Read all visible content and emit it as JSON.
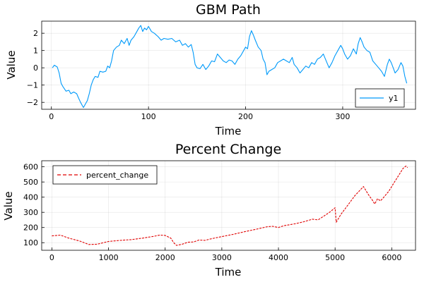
{
  "chart_data": [
    {
      "type": "line",
      "title": "GBM Path",
      "xlabel": "Time",
      "ylabel": "Value",
      "xlim": [
        -10,
        375
      ],
      "ylim": [
        -2.4,
        2.7
      ],
      "xticks": [
        0,
        100,
        200,
        300
      ],
      "yticks": [
        -2,
        -1,
        0,
        1,
        2
      ],
      "grid": true,
      "legend_position": "bottom-right",
      "series": [
        {
          "name": "y1",
          "color": "#009AFA",
          "points": [
            [
              1,
              0.0
            ],
            [
              3,
              0.15
            ],
            [
              6,
              0.05
            ],
            [
              8,
              -0.3
            ],
            [
              10,
              -0.9
            ],
            [
              12,
              -1.1
            ],
            [
              15,
              -1.35
            ],
            [
              18,
              -1.3
            ],
            [
              20,
              -1.5
            ],
            [
              23,
              -1.4
            ],
            [
              26,
              -1.5
            ],
            [
              28,
              -1.75
            ],
            [
              30,
              -2.0
            ],
            [
              32,
              -2.2
            ],
            [
              33,
              -2.3
            ],
            [
              35,
              -2.1
            ],
            [
              37,
              -1.9
            ],
            [
              39,
              -1.5
            ],
            [
              41,
              -1.0
            ],
            [
              43,
              -0.7
            ],
            [
              45,
              -0.5
            ],
            [
              48,
              -0.55
            ],
            [
              50,
              -0.2
            ],
            [
              53,
              -0.25
            ],
            [
              56,
              -0.2
            ],
            [
              58,
              0.1
            ],
            [
              60,
              0.0
            ],
            [
              62,
              0.4
            ],
            [
              64,
              1.0
            ],
            [
              67,
              1.2
            ],
            [
              70,
              1.3
            ],
            [
              72,
              1.6
            ],
            [
              75,
              1.4
            ],
            [
              78,
              1.7
            ],
            [
              80,
              1.3
            ],
            [
              82,
              1.6
            ],
            [
              85,
              1.8
            ],
            [
              88,
              2.1
            ],
            [
              90,
              2.3
            ],
            [
              92,
              2.45
            ],
            [
              94,
              2.1
            ],
            [
              96,
              2.3
            ],
            [
              98,
              2.2
            ],
            [
              100,
              2.4
            ],
            [
              103,
              2.1
            ],
            [
              106,
              2.0
            ],
            [
              110,
              1.8
            ],
            [
              113,
              1.6
            ],
            [
              116,
              1.7
            ],
            [
              120,
              1.65
            ],
            [
              124,
              1.7
            ],
            [
              128,
              1.5
            ],
            [
              132,
              1.6
            ],
            [
              135,
              1.3
            ],
            [
              138,
              1.4
            ],
            [
              141,
              1.2
            ],
            [
              144,
              1.35
            ],
            [
              146,
              0.9
            ],
            [
              148,
              0.2
            ],
            [
              150,
              0.0
            ],
            [
              153,
              -0.05
            ],
            [
              156,
              0.2
            ],
            [
              159,
              -0.1
            ],
            [
              162,
              0.1
            ],
            [
              165,
              0.4
            ],
            [
              168,
              0.35
            ],
            [
              171,
              0.8
            ],
            [
              174,
              0.6
            ],
            [
              177,
              0.4
            ],
            [
              180,
              0.3
            ],
            [
              183,
              0.45
            ],
            [
              186,
              0.4
            ],
            [
              189,
              0.2
            ],
            [
              192,
              0.5
            ],
            [
              195,
              0.7
            ],
            [
              198,
              1.0
            ],
            [
              200,
              1.2
            ],
            [
              202,
              1.1
            ],
            [
              204,
              1.8
            ],
            [
              206,
              2.15
            ],
            [
              208,
              1.9
            ],
            [
              210,
              1.6
            ],
            [
              213,
              1.2
            ],
            [
              216,
              1.0
            ],
            [
              218,
              0.5
            ],
            [
              220,
              0.3
            ],
            [
              222,
              -0.4
            ],
            [
              224,
              -0.2
            ],
            [
              227,
              -0.1
            ],
            [
              230,
              0.0
            ],
            [
              233,
              0.3
            ],
            [
              236,
              0.4
            ],
            [
              239,
              0.5
            ],
            [
              242,
              0.4
            ],
            [
              245,
              0.3
            ],
            [
              248,
              0.6
            ],
            [
              250,
              0.2
            ],
            [
              253,
              0.0
            ],
            [
              256,
              -0.3
            ],
            [
              259,
              -0.1
            ],
            [
              262,
              0.1
            ],
            [
              265,
              0.0
            ],
            [
              268,
              0.3
            ],
            [
              271,
              0.2
            ],
            [
              274,
              0.5
            ],
            [
              277,
              0.6
            ],
            [
              280,
              0.8
            ],
            [
              283,
              0.4
            ],
            [
              286,
              0.0
            ],
            [
              289,
              0.3
            ],
            [
              292,
              0.7
            ],
            [
              295,
              1.0
            ],
            [
              298,
              1.3
            ],
            [
              300,
              1.1
            ],
            [
              302,
              0.8
            ],
            [
              305,
              0.5
            ],
            [
              308,
              0.7
            ],
            [
              311,
              1.1
            ],
            [
              314,
              0.8
            ],
            [
              316,
              1.4
            ],
            [
              318,
              1.75
            ],
            [
              320,
              1.5
            ],
            [
              322,
              1.2
            ],
            [
              325,
              1.0
            ],
            [
              328,
              0.9
            ],
            [
              331,
              0.4
            ],
            [
              334,
              0.2
            ],
            [
              337,
              0.0
            ],
            [
              340,
              -0.2
            ],
            [
              343,
              -0.5
            ],
            [
              346,
              0.2
            ],
            [
              348,
              0.5
            ],
            [
              350,
              0.3
            ],
            [
              352,
              0.0
            ],
            [
              354,
              -0.3
            ],
            [
              357,
              -0.1
            ],
            [
              360,
              0.3
            ],
            [
              362,
              0.1
            ],
            [
              364,
              -0.5
            ],
            [
              366,
              -0.9
            ]
          ]
        }
      ]
    },
    {
      "type": "line",
      "title": "Percent Change",
      "xlabel": "Time",
      "ylabel": "Value",
      "xlim": [
        -180,
        6420
      ],
      "ylim": [
        50,
        640
      ],
      "xticks": [
        0,
        1000,
        2000,
        3000,
        4000,
        5000,
        6000
      ],
      "yticks": [
        100,
        200,
        300,
        400,
        500,
        600
      ],
      "grid": true,
      "legend_position": "top-left",
      "series": [
        {
          "name": "percent_change",
          "color": "#E00000",
          "dashed": true,
          "points": [
            [
              0,
              145
            ],
            [
              150,
              150
            ],
            [
              300,
              130
            ],
            [
              500,
              110
            ],
            [
              650,
              88
            ],
            [
              800,
              90
            ],
            [
              1000,
              108
            ],
            [
              1200,
              115
            ],
            [
              1400,
              120
            ],
            [
              1600,
              130
            ],
            [
              1800,
              142
            ],
            [
              1900,
              150
            ],
            [
              2000,
              148
            ],
            [
              2100,
              130
            ],
            [
              2150,
              100
            ],
            [
              2200,
              82
            ],
            [
              2300,
              90
            ],
            [
              2400,
              103
            ],
            [
              2500,
              105
            ],
            [
              2600,
              118
            ],
            [
              2700,
              115
            ],
            [
              2800,
              125
            ],
            [
              3000,
              140
            ],
            [
              3200,
              155
            ],
            [
              3400,
              172
            ],
            [
              3600,
              188
            ],
            [
              3800,
              205
            ],
            [
              3900,
              208
            ],
            [
              4000,
              200
            ],
            [
              4100,
              212
            ],
            [
              4300,
              225
            ],
            [
              4450,
              238
            ],
            [
              4600,
              255
            ],
            [
              4700,
              250
            ],
            [
              4800,
              275
            ],
            [
              4900,
              300
            ],
            [
              5000,
              330
            ],
            [
              5020,
              235
            ],
            [
              5100,
              285
            ],
            [
              5250,
              360
            ],
            [
              5350,
              410
            ],
            [
              5450,
              450
            ],
            [
              5500,
              470
            ],
            [
              5550,
              440
            ],
            [
              5600,
              410
            ],
            [
              5650,
              385
            ],
            [
              5700,
              355
            ],
            [
              5750,
              390
            ],
            [
              5800,
              375
            ],
            [
              5850,
              395
            ],
            [
              5950,
              440
            ],
            [
              6050,
              500
            ],
            [
              6150,
              560
            ],
            [
              6200,
              590
            ],
            [
              6250,
              605
            ],
            [
              6280,
              595
            ]
          ]
        }
      ]
    }
  ]
}
